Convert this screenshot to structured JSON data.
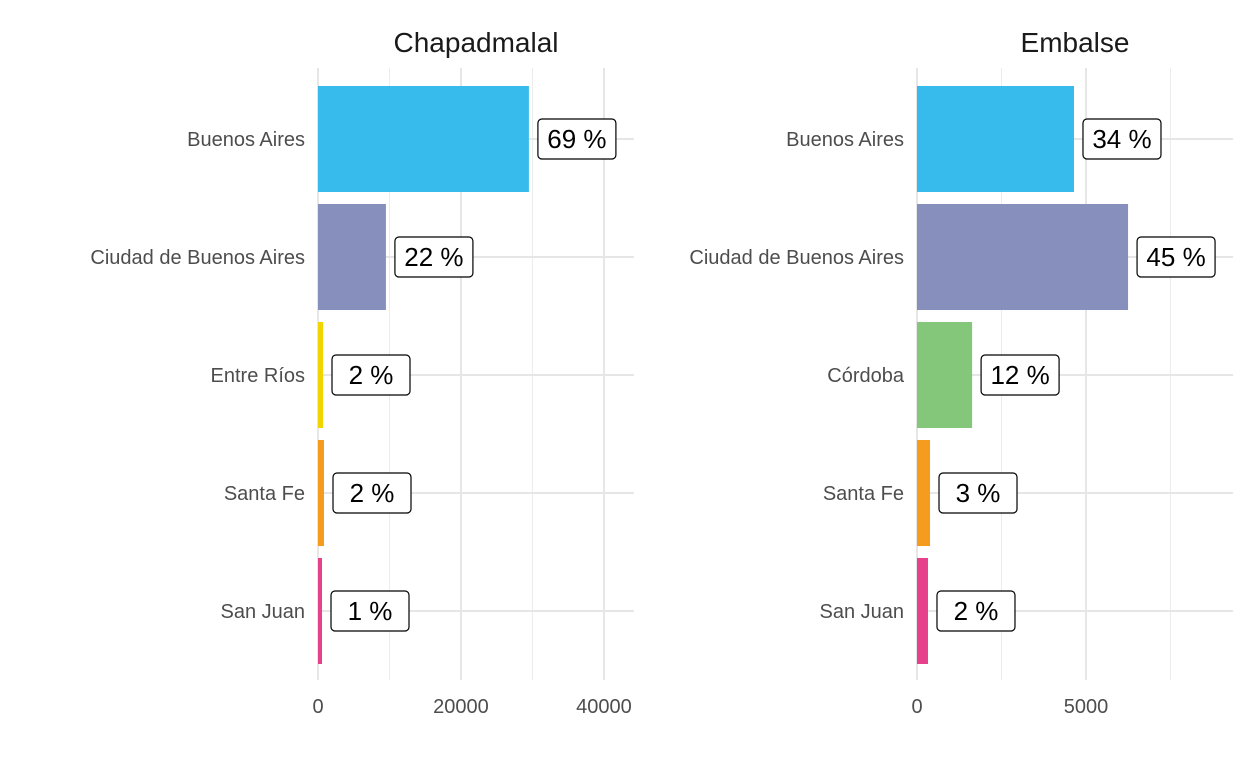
{
  "chart_data": [
    {
      "type": "bar",
      "orientation": "horizontal",
      "title": "Chapadmalal",
      "xlabel": "",
      "ylabel": "",
      "categories": [
        "Buenos Aires",
        "Ciudad de Buenos Aires",
        "Entre Ríos",
        "Santa Fe",
        "San Juan"
      ],
      "values": [
        29500,
        9500,
        700,
        840,
        560
      ],
      "labels": [
        "69 %",
        "22 %",
        "2 %",
        "2 %",
        "1 %"
      ],
      "colors": [
        "#37BBEC",
        "#878FBC",
        "#F2D500",
        "#F59C1E",
        "#E8418C"
      ],
      "xlim": [
        0,
        44200
      ],
      "xticks": [
        0,
        20000,
        40000
      ],
      "xtick_labels": [
        "0",
        "20000",
        "40000"
      ],
      "minor_ticks": [
        10000,
        30000
      ],
      "grid": true
    },
    {
      "type": "bar",
      "orientation": "horizontal",
      "title": "Embalse",
      "xlabel": "",
      "ylabel": "",
      "categories": [
        "Buenos Aires",
        "Ciudad de Buenos Aires",
        "Córdoba",
        "Santa Fe",
        "San Juan"
      ],
      "values": [
        4645,
        6245,
        1630,
        385,
        325
      ],
      "labels": [
        "34 %",
        "45 %",
        "12 %",
        "3 %",
        "2 %"
      ],
      "colors": [
        "#37BBEC",
        "#878FBC",
        "#84C77A",
        "#F59C1E",
        "#E8418C"
      ],
      "xlim": [
        0,
        9350
      ],
      "xticks": [
        0,
        5000
      ],
      "xtick_labels": [
        "0",
        "5000"
      ],
      "minor_ticks": [
        2500,
        7500
      ],
      "grid": true
    }
  ]
}
